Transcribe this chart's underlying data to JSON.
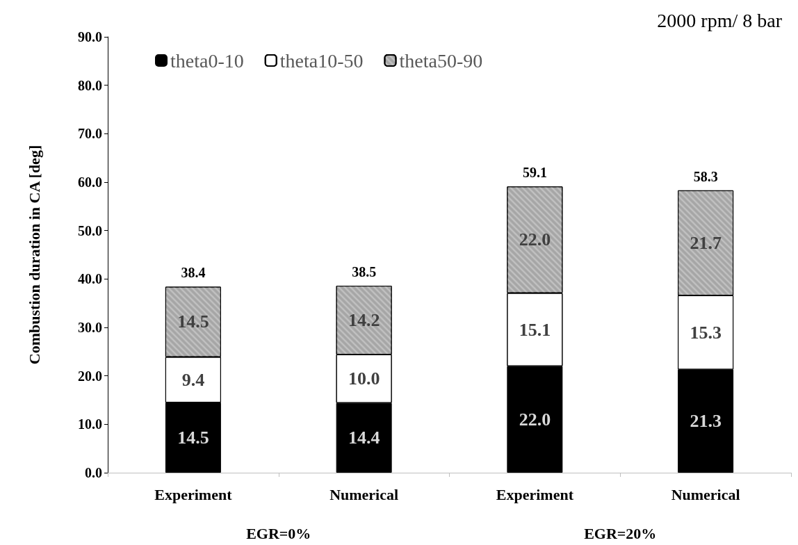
{
  "chart_data": {
    "type": "bar",
    "stacked": true,
    "title": "2000 rpm/ 8 bar",
    "ylabel": "Combustion duration in CA [deg]",
    "categories": [
      "Experiment",
      "Numerical",
      "Experiment",
      "Numerical"
    ],
    "annotations": [
      "EGR=0%",
      "EGR=20%"
    ],
    "series": [
      {
        "name": "theta0-10",
        "color": "#000000",
        "values": [
          14.5,
          14.4,
          22.0,
          21.3
        ],
        "value_labels": [
          "14.5",
          "14.4",
          "22.0",
          "21.3"
        ]
      },
      {
        "name": "theta10-50",
        "color": "#ffffff",
        "values": [
          9.4,
          10.0,
          15.1,
          15.3
        ],
        "value_labels": [
          "9.4",
          "10.0",
          "15.1",
          "15.3"
        ]
      },
      {
        "name": "theta50-90",
        "color": "#a6a6a6",
        "values": [
          14.5,
          14.2,
          22.0,
          21.7
        ],
        "value_labels": [
          "14.5",
          "14.2",
          "22.0",
          "21.7"
        ]
      }
    ],
    "totals": [
      "38.4",
      "38.5",
      "59.1",
      "58.3"
    ],
    "ylim": [
      0,
      90
    ],
    "yticks": [
      {
        "value": 0,
        "label": "0.0"
      },
      {
        "value": 10,
        "label": "10.0"
      },
      {
        "value": 20,
        "label": "20.0"
      },
      {
        "value": 30,
        "label": "30.0"
      },
      {
        "value": 40,
        "label": "40.0"
      },
      {
        "value": 50,
        "label": "50.0"
      },
      {
        "value": 60,
        "label": "60.0"
      },
      {
        "value": 70,
        "label": "70.0"
      },
      {
        "value": 80,
        "label": "80.0"
      },
      {
        "value": 90,
        "label": "90.0"
      }
    ],
    "grid": false,
    "legend": "top left"
  }
}
